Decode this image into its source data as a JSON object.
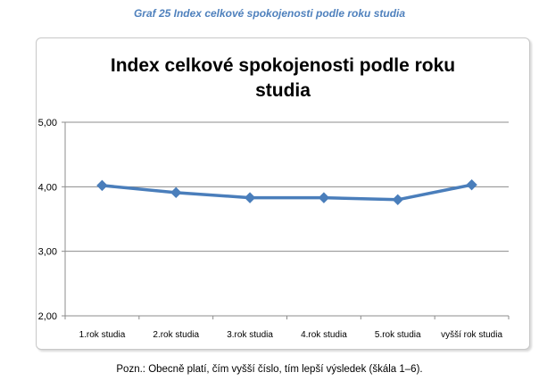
{
  "caption": "Graf 25 Index celkové spokojenosti podle roku studia",
  "note": "Pozn.: Obecně platí, čím vyšší číslo, tím lepší výsledek (škála 1–6).",
  "chart_data": {
    "type": "line",
    "title_lines": [
      "Index celkové spokojenosti podle roku",
      "studia"
    ],
    "categories": [
      "1.rok studia",
      "2.rok studia",
      "3.rok studia",
      "4.rok studia",
      "5.rok studia",
      "vyšší rok studia"
    ],
    "series": [
      {
        "values": [
          4.02,
          3.91,
          3.83,
          3.83,
          3.8,
          4.03
        ]
      }
    ],
    "ylim": [
      2.0,
      5.0
    ],
    "yticks": [
      2.0,
      3.0,
      4.0,
      5.0
    ],
    "ytick_labels": [
      "2,00",
      "3,00",
      "4,00",
      "5,00"
    ],
    "grid": true,
    "legend": "none",
    "line_color": "#4a7ebb"
  }
}
